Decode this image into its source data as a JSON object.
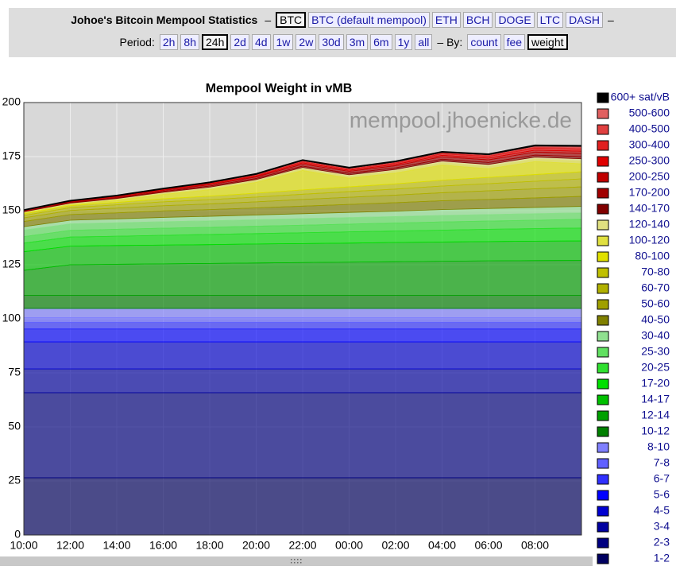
{
  "header": {
    "title": "Johoe's Bitcoin Mempool Statistics",
    "separator": "–",
    "coins": [
      "BTC",
      "BTC (default mempool)",
      "ETH",
      "BCH",
      "DOGE",
      "LTC",
      "DASH"
    ],
    "selected_coin": "BTC",
    "period_label": "Period:",
    "periods": [
      "2h",
      "8h",
      "24h",
      "2d",
      "4d",
      "1w",
      "2w",
      "30d",
      "3m",
      "6m",
      "1y",
      "all"
    ],
    "selected_period": "24h",
    "by_label": "– By:",
    "by": [
      "count",
      "fee",
      "weight"
    ],
    "selected_by": "weight"
  },
  "chart_data": {
    "type": "stacked_area",
    "title": "Mempool Weight in vMB",
    "watermark": "mempool.jhoenicke.de",
    "x": [
      0,
      2,
      4,
      6,
      8,
      10,
      12,
      14,
      16,
      18,
      20,
      22,
      24
    ],
    "xlim": [
      0,
      24
    ],
    "xticks": [
      {
        "value": 0,
        "label": "10:00"
      },
      {
        "value": 2,
        "label": "12:00"
      },
      {
        "value": 4,
        "label": "14:00"
      },
      {
        "value": 6,
        "label": "16:00"
      },
      {
        "value": 8,
        "label": "18:00"
      },
      {
        "value": 10,
        "label": "20:00"
      },
      {
        "value": 12,
        "label": "22:00"
      },
      {
        "value": 14,
        "label": "00:00"
      },
      {
        "value": 16,
        "label": "02:00"
      },
      {
        "value": 18,
        "label": "04:00"
      },
      {
        "value": 20,
        "label": "06:00"
      },
      {
        "value": 22,
        "label": "08:00"
      }
    ],
    "ylim": [
      0,
      200
    ],
    "yticks": [
      0,
      25,
      50,
      75,
      100,
      125,
      150,
      175,
      200
    ],
    "grid": true,
    "series": [
      {
        "name": "1-2",
        "color": "#000060",
        "values": [
          26.5,
          26.5,
          26.5,
          26.5,
          26.5,
          26.5,
          26.5,
          26.5,
          26.5,
          26.5,
          26.5,
          26.5,
          26.5
        ]
      },
      {
        "name": "2-3",
        "color": "#000080",
        "values": [
          39.3,
          39.3,
          39.3,
          39.3,
          39.3,
          39.3,
          39.3,
          39.3,
          39.3,
          39.3,
          39.3,
          39.3,
          39.3
        ]
      },
      {
        "name": "3-4",
        "color": "#0000a0",
        "values": [
          11,
          11,
          11,
          11,
          11,
          11,
          11,
          11,
          11,
          11,
          11,
          11,
          11
        ]
      },
      {
        "name": "4-5",
        "color": "#0000d0",
        "values": [
          12.5,
          12.5,
          12.5,
          12.5,
          12.5,
          12.5,
          12.5,
          12.5,
          12.5,
          12.5,
          12.5,
          12.5,
          12.5
        ]
      },
      {
        "name": "5-6",
        "color": "#0000ff",
        "values": [
          6,
          6,
          6,
          6,
          6,
          6,
          6,
          6,
          6,
          6,
          6,
          6,
          6
        ]
      },
      {
        "name": "6-7",
        "color": "#3030ff",
        "values": [
          3,
          3,
          3,
          3,
          3,
          3,
          3,
          3,
          3,
          3,
          3,
          3,
          3
        ]
      },
      {
        "name": "7-8",
        "color": "#6060ff",
        "values": [
          2.2,
          2.2,
          2.2,
          2.2,
          2.2,
          2.2,
          2.2,
          2.2,
          2.2,
          2.2,
          2.2,
          2.2,
          2.2
        ]
      },
      {
        "name": "8-10",
        "color": "#8080ff",
        "values": [
          4.3,
          4.3,
          4.3,
          4.3,
          4.3,
          4.3,
          4.3,
          4.3,
          4.3,
          4.3,
          4.3,
          4.3,
          4.3
        ]
      },
      {
        "name": "10-12",
        "color": "#008000",
        "values": [
          6,
          6,
          6,
          6,
          6,
          6,
          6,
          6,
          6,
          6,
          6,
          6,
          6
        ]
      },
      {
        "name": "12-14",
        "color": "#00a000",
        "values": [
          11.6,
          14.2,
          14.4,
          14.6,
          14.8,
          15.0,
          15.2,
          15.4,
          15.6,
          15.8,
          16.0,
          16.1,
          16.2
        ]
      },
      {
        "name": "14-17",
        "color": "#00c000",
        "values": [
          8.6,
          8.6,
          8.7,
          8.7,
          8.7,
          8.8,
          8.8,
          8.8,
          8.9,
          8.9,
          8.9,
          9.0,
          9.0
        ]
      },
      {
        "name": "17-20",
        "color": "#00e000",
        "values": [
          4.0,
          4.2,
          4.3,
          4.5,
          4.7,
          4.8,
          5.0,
          5.2,
          5.3,
          5.5,
          5.7,
          5.8,
          6.0
        ]
      },
      {
        "name": "20-25",
        "color": "#30e030",
        "values": [
          3.0,
          3.1,
          3.2,
          3.3,
          3.3,
          3.4,
          3.5,
          3.6,
          3.7,
          3.8,
          3.8,
          3.9,
          4.0
        ]
      },
      {
        "name": "25-30",
        "color": "#60e060",
        "values": [
          3,
          3,
          3,
          3,
          3,
          3,
          3,
          3,
          3,
          3,
          3,
          3,
          3
        ]
      },
      {
        "name": "30-40",
        "color": "#90e090",
        "values": [
          1.6,
          1.7,
          1.8,
          2.0,
          2.1,
          2.2,
          2.3,
          2.4,
          2.5,
          2.7,
          2.8,
          2.9,
          3.0
        ]
      },
      {
        "name": "40-50",
        "color": "#808000",
        "values": [
          2.4,
          2.6,
          2.8,
          3.0,
          3.1,
          3.3,
          3.5,
          3.7,
          3.9,
          4.1,
          4.2,
          4.4,
          4.6
        ]
      },
      {
        "name": "50-60",
        "color": "#a0a000",
        "values": [
          1.7,
          1.9,
          2.2,
          2.4,
          2.6,
          2.8,
          3.1,
          3.3,
          3.5,
          3.7,
          4.0,
          4.2,
          4.4
        ]
      },
      {
        "name": "60-70",
        "color": "#b0b000",
        "values": [
          1.1,
          1.3,
          1.5,
          1.8,
          2.0,
          2.2,
          2.4,
          2.6,
          2.8,
          3.1,
          3.3,
          3.5,
          3.7
        ]
      },
      {
        "name": "70-80",
        "color": "#c0c000",
        "values": [
          0.7,
          0.9,
          1.1,
          1.4,
          1.6,
          1.8,
          2.0,
          2.2,
          2.4,
          2.7,
          2.9,
          3.1,
          3.3
        ]
      },
      {
        "name": "80-100",
        "color": "#e0e000",
        "values": [
          0.5,
          0.5,
          1,
          2,
          3,
          5,
          9,
          4,
          5,
          7,
          4,
          6,
          3.7
        ]
      },
      {
        "name": "100-120",
        "color": "#e0e040",
        "values": [
          0.3,
          0.4,
          0.5,
          0.6,
          0.7,
          0.8,
          0.8,
          0.9,
          1.0,
          1.1,
          1.1,
          1.2,
          1.3
        ]
      },
      {
        "name": "120-140",
        "color": "#e0e080",
        "values": [
          0.2,
          0.3,
          0.3,
          0.4,
          0.5,
          0.5,
          0.6,
          0.7,
          0.7,
          0.8,
          0.9,
          0.9,
          1.0
        ]
      },
      {
        "name": "140-170",
        "color": "#800000",
        "values": [
          0.2,
          0.3,
          0.3,
          0.4,
          0.5,
          0.5,
          0.6,
          0.7,
          0.7,
          0.8,
          0.9,
          0.9,
          1.0
        ]
      },
      {
        "name": "170-200",
        "color": "#a00000",
        "values": [
          0.2,
          0.3,
          0.4,
          0.5,
          0.6,
          0.7,
          0.9,
          0.9,
          1.0,
          1.1,
          1.2,
          1.4,
          1.5
        ]
      },
      {
        "name": "200-250",
        "color": "#c00000",
        "values": [
          0.1,
          0.2,
          0.2,
          0.3,
          0.4,
          0.4,
          0.6,
          0.5,
          0.6,
          0.7,
          0.8,
          0.9,
          1.0
        ]
      },
      {
        "name": "250-300",
        "color": "#e00000",
        "values": [
          0.1,
          0.1,
          0.2,
          0.2,
          0.3,
          0.4,
          0.5,
          0.5,
          0.6,
          0.7,
          0.8,
          0.9,
          1.0
        ]
      },
      {
        "name": "300-400",
        "color": "#e02020",
        "values": [
          0.1,
          0.1,
          0.1,
          0.1,
          0.2,
          0.2,
          0.3,
          0.2,
          0.3,
          0.3,
          0.4,
          0.4,
          0.5
        ]
      },
      {
        "name": "400-500",
        "color": "#e04040",
        "values": [
          0,
          0,
          0.1,
          0.1,
          0.1,
          0.1,
          0.2,
          0.2,
          0.2,
          0.3,
          0.3,
          0.4,
          0.5
        ]
      },
      {
        "name": "500-600",
        "color": "#e06060",
        "values": [
          0,
          0,
          0,
          0,
          0,
          0.1,
          0.1,
          0.1,
          0.1,
          0.1,
          0.1,
          0.2,
          0.2
        ]
      },
      {
        "name": "600+ sat/vB",
        "color": "#000000",
        "values": [
          0.1,
          0.1,
          0.1,
          0.1,
          0.1,
          0.2,
          0.2,
          0.2,
          0.2,
          0.2,
          0.2,
          0.3,
          0.3
        ]
      }
    ]
  }
}
